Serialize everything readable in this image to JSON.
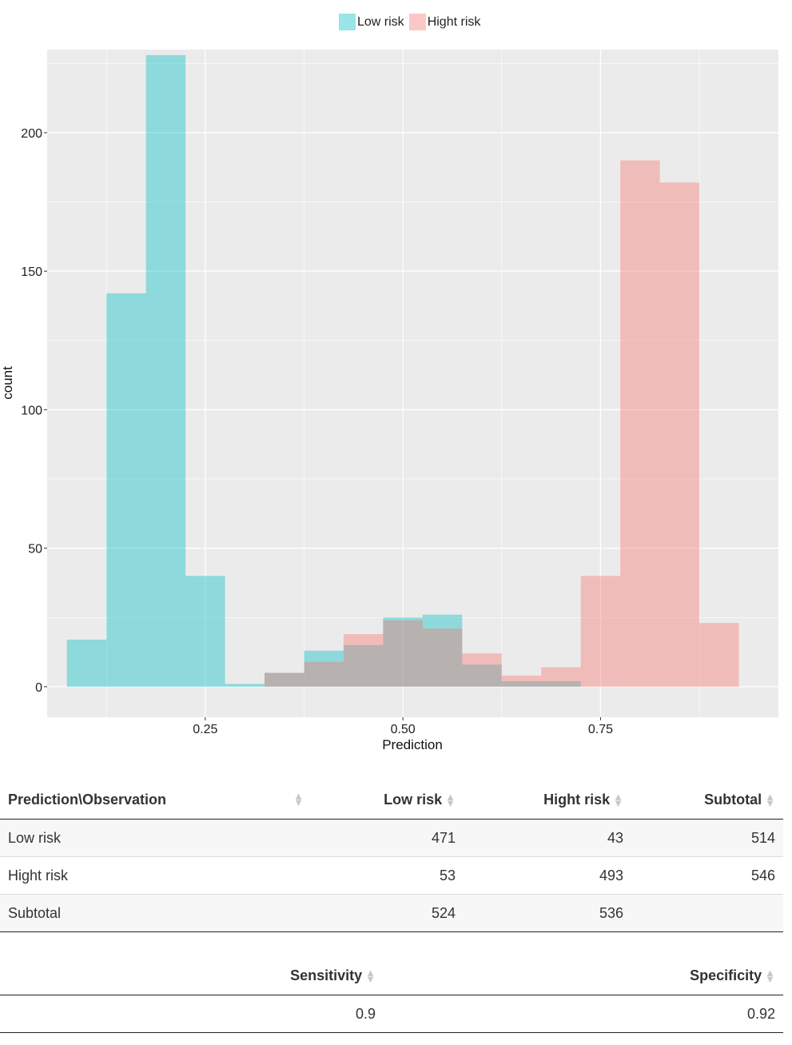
{
  "legend": [
    {
      "label": "Low risk",
      "color": "#00BFC4"
    },
    {
      "label": "Hight risk",
      "color": "#F8766D"
    }
  ],
  "chart_data": {
    "type": "histogram",
    "xlabel": "Prediction",
    "ylabel": "count",
    "xlim": [
      0.05,
      0.975
    ],
    "ylim": [
      -11,
      230
    ],
    "xticks": [
      0.25,
      0.5,
      0.75
    ],
    "xtick_labels": [
      "0.25",
      "0.50",
      "0.75"
    ],
    "yticks": [
      0,
      50,
      100,
      150,
      200
    ],
    "grid": true,
    "legend_position": "top",
    "bin_edges": [
      0.075,
      0.125,
      0.175,
      0.225,
      0.275,
      0.325,
      0.375,
      0.425,
      0.475,
      0.525,
      0.575,
      0.625,
      0.675,
      0.725,
      0.775,
      0.825,
      0.875,
      0.925
    ],
    "series": [
      {
        "name": "Low risk",
        "color": "#00BFC4",
        "values": [
          17,
          142,
          228,
          40,
          1,
          5,
          13,
          15,
          25,
          26,
          8,
          2,
          2,
          0,
          0,
          0,
          0
        ]
      },
      {
        "name": "Hight risk",
        "color": "#F8766D",
        "values": [
          0,
          0,
          0,
          0,
          0,
          5,
          9,
          19,
          24,
          21,
          12,
          4,
          7,
          40,
          190,
          182,
          23
        ]
      }
    ]
  },
  "confusion_table": {
    "headers": [
      "Prediction\\Observation",
      "Low risk",
      "Hight risk",
      "Subtotal"
    ],
    "rows": [
      [
        "Low risk",
        "471",
        "43",
        "514"
      ],
      [
        "Hight risk",
        "53",
        "493",
        "546"
      ],
      [
        "Subtotal",
        "524",
        "536",
        ""
      ]
    ]
  },
  "metrics_table": {
    "headers": [
      "",
      "Sensitivity",
      "Specificity"
    ],
    "rows": [
      [
        "",
        "0.9",
        "0.92"
      ]
    ]
  }
}
